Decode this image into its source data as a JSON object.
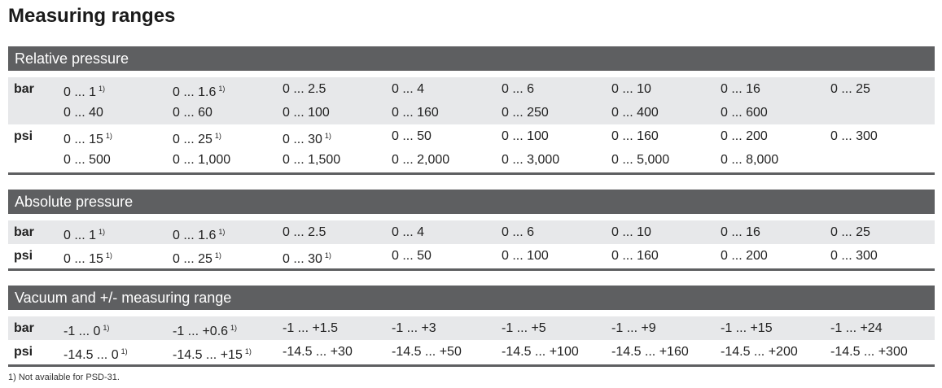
{
  "title": "Measuring ranges",
  "sections": [
    {
      "title": "Relative pressure",
      "rows": [
        {
          "unit": "bar",
          "lines": [
            [
              {
                "text": "0 ... 1",
                "note": "1)"
              },
              {
                "text": "0 ... 1.6",
                "note": "1)"
              },
              "0 ... 2.5",
              "0 ... 4",
              "0 ... 6",
              "0 ... 10",
              "0 ... 16",
              "0 ... 25"
            ],
            [
              "0 ... 40",
              "0 ... 60",
              "0 ... 100",
              "0 ... 160",
              "0 ... 250",
              "0 ... 400",
              "0 ... 600"
            ]
          ]
        },
        {
          "unit": "psi",
          "lines": [
            [
              {
                "text": "0 ... 15",
                "note": "1)"
              },
              {
                "text": "0 ... 25",
                "note": "1)"
              },
              {
                "text": "0 ... 30",
                "note": "1)"
              },
              "0 ... 50",
              "0 ... 100",
              "0 ... 160",
              "0 ... 200",
              "0 ... 300"
            ],
            [
              "0 ... 500",
              "0 ... 1,000",
              "0 ... 1,500",
              "0 ... 2,000",
              "0 ... 3,000",
              "0 ... 5,000",
              "0 ... 8,000"
            ]
          ]
        }
      ]
    },
    {
      "title": "Absolute pressure",
      "rows": [
        {
          "unit": "bar",
          "lines": [
            [
              {
                "text": "0 ... 1",
                "note": "1)"
              },
              {
                "text": "0 ... 1.6",
                "note": "1)"
              },
              "0 ... 2.5",
              "0 ... 4",
              "0 ... 6",
              "0 ... 10",
              "0 ... 16",
              "0 ... 25"
            ]
          ]
        },
        {
          "unit": "psi",
          "lines": [
            [
              {
                "text": "0 ... 15",
                "note": "1)"
              },
              {
                "text": "0 ... 25",
                "note": "1)"
              },
              {
                "text": "0 ... 30",
                "note": "1)"
              },
              "0 ... 50",
              "0 ... 100",
              "0 ... 160",
              "0 ... 200",
              "0 ... 300"
            ]
          ]
        }
      ]
    },
    {
      "title": "Vacuum and +/- measuring range",
      "rows": [
        {
          "unit": "bar",
          "lines": [
            [
              {
                "text": "-1 ... 0",
                "note": "1)"
              },
              {
                "text": "-1 ... +0.6",
                "note": "1)"
              },
              "-1 ... +1.5",
              "-1 ... +3",
              "-1 ... +5",
              "-1 ... +9",
              "-1 ... +15",
              "-1 ... +24"
            ]
          ]
        },
        {
          "unit": "psi",
          "lines": [
            [
              {
                "text": "-14.5 ... 0",
                "note": "1)"
              },
              {
                "text": "-14.5 ... +15",
                "note": "1)"
              },
              "-14.5 ... +30",
              "-14.5 ... +50",
              "-14.5 ... +100",
              "-14.5 ... +160",
              "-14.5 ... +200",
              "-14.5 ... +300"
            ]
          ]
        }
      ]
    }
  ],
  "footnote": "1) Not available for PSD-31."
}
